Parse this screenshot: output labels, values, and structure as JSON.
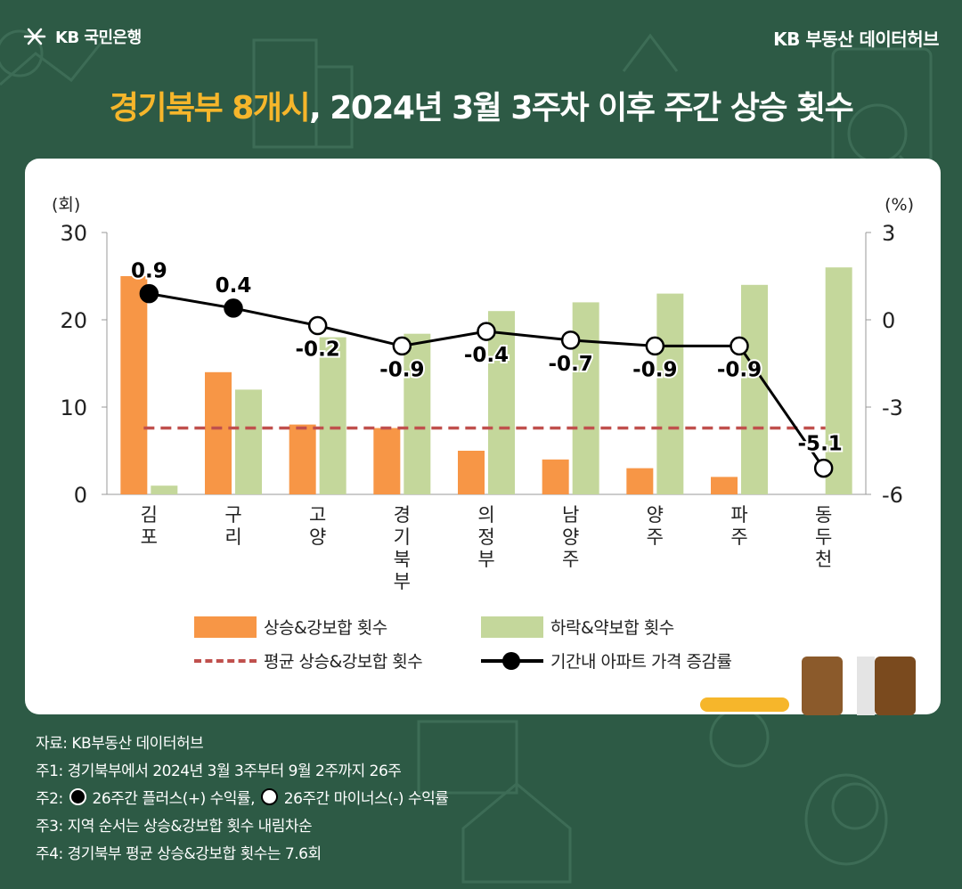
{
  "header": {
    "logo_text": "KB 국민은행",
    "brand": "KB 부동산  데이터허브",
    "title_highlight": "경기북부 8개시",
    "title_rest": ", 2024년 3월 3주차 이후 주간 상승 횟수"
  },
  "colors": {
    "background": "#2d5a45",
    "accent": "#f6b62b",
    "rise_bar": "#f79646",
    "fall_bar": "#c4d79b",
    "avg_line": "#c0504d",
    "price_line": "#000000"
  },
  "chart_data": {
    "type": "bar",
    "left_axis_unit": "(회)",
    "right_axis_unit": "(%)",
    "ylim_left": [
      0,
      30
    ],
    "yticks_left": [
      "0",
      "10",
      "20",
      "30"
    ],
    "ylim_right": [
      -6,
      3
    ],
    "yticks_right": [
      "-6",
      "-3",
      "0",
      "3"
    ],
    "categories": [
      "김포",
      "구리",
      "고양",
      "경기북부",
      "의정부",
      "남양주",
      "양주",
      "파주",
      "동두천"
    ],
    "series": [
      {
        "name": "상승&강보합 횟수",
        "kind": "bar",
        "axis": "left",
        "values": [
          25,
          14,
          8,
          7.6,
          5,
          4,
          3,
          2,
          0
        ]
      },
      {
        "name": "하락&약보합 횟수",
        "kind": "bar",
        "axis": "left",
        "values": [
          1,
          12,
          18,
          18.4,
          21,
          22,
          23,
          24,
          26
        ]
      },
      {
        "name": "평균 상승&강보합 횟수",
        "kind": "dashed-line",
        "axis": "left",
        "value": 7.6
      },
      {
        "name": "기간내 아파트 가격 증감률",
        "kind": "line",
        "axis": "right",
        "values": [
          0.9,
          0.4,
          -0.2,
          -0.9,
          -0.4,
          -0.7,
          -0.9,
          -0.9,
          -5.1
        ],
        "labels": [
          "0.9",
          "0.4",
          "-0.2",
          "-0.9",
          "-0.4",
          "-0.7",
          "-0.9",
          "-0.9",
          "-5.1"
        ]
      }
    ],
    "grid": false,
    "legend_position": "bottom"
  },
  "notes": {
    "source": "자료: KB부동산 데이터허브",
    "note1": "주1: 경기북부에서 2024년 3월 3주부터 9월 2주까지 26주",
    "note2_a": "주2: ",
    "note2_b": " 26주간 플러스(+) 수익률, ",
    "note2_c": " 26주간 마이너스(-) 수익률",
    "note3": "주3: 지역 순서는 상승&강보합 횟수 내림차순",
    "note4": "주4: 경기북부 평균 상승&강보합 횟수는 7.6회"
  }
}
